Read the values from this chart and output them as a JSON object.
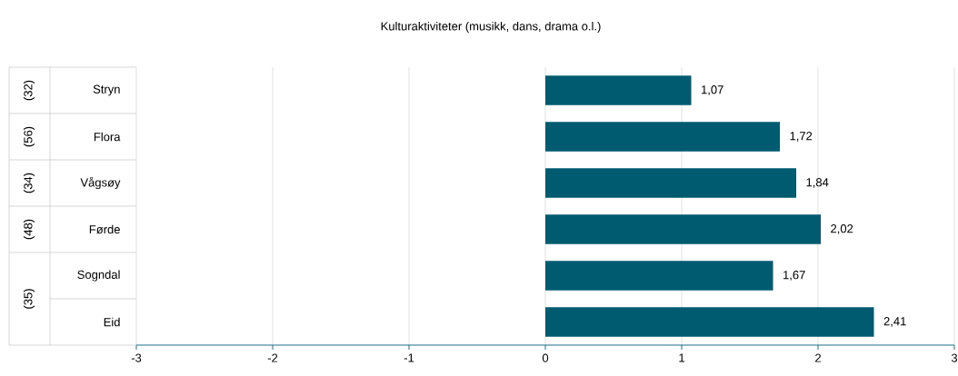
{
  "chart_data": {
    "type": "bar",
    "orientation": "horizontal",
    "title": "Kulturaktiviteter (musikk, dans, drama o.l.)",
    "categories": [
      "Stryn",
      "Flora",
      "Vågsøy",
      "Førde",
      "Sogndal",
      "Eid"
    ],
    "values": [
      1.07,
      1.72,
      1.84,
      2.02,
      1.67,
      2.41
    ],
    "value_labels": [
      "1,07",
      "1,72",
      "1,84",
      "2,02",
      "1,67",
      "2,41"
    ],
    "color": "#005a70",
    "xlim": [
      -3,
      3
    ],
    "xticks": [
      -3,
      -2,
      -1,
      0,
      1,
      2,
      3
    ],
    "grid": "x",
    "annotations": [
      "(32)",
      "(56)",
      "(34)",
      "(48)",
      "(35)"
    ]
  }
}
